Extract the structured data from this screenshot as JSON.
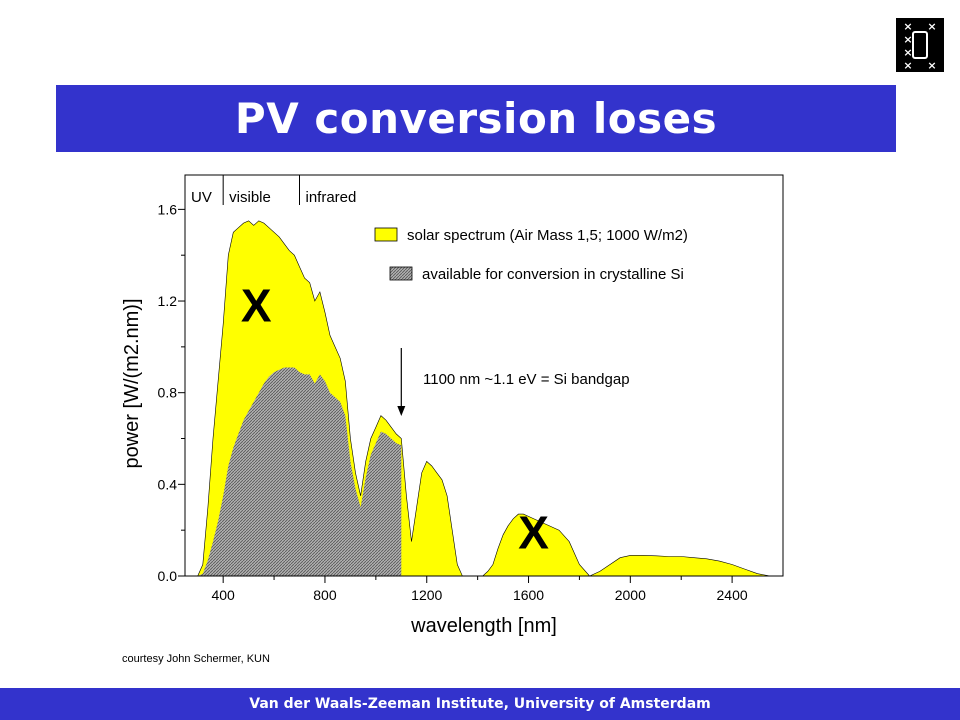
{
  "slide": {
    "title": "PV conversion loses",
    "credit": "courtesy John Schermer, KUN",
    "footer": "Van der Waals-Zeeman Institute, University of Amsterdam",
    "logo_icon": "uva-logo-icon"
  },
  "chart_data": {
    "type": "area",
    "xlabel": "wavelength [nm]",
    "ylabel": "power [W/(m2.nm)]",
    "xlim": [
      250,
      2600
    ],
    "ylim": [
      0,
      1.75
    ],
    "xticks": [
      400,
      800,
      1200,
      1600,
      2000,
      2400
    ],
    "yticks": [
      0.0,
      0.4,
      0.8,
      1.2,
      1.6
    ],
    "ytick_labels": [
      "0.0",
      "0.4",
      "0.8",
      "1.2",
      "1.6"
    ],
    "regions": [
      {
        "label": "UV",
        "from": 250,
        "to": 400
      },
      {
        "label": "visible",
        "from": 400,
        "to": 700
      },
      {
        "label": "infrared",
        "from": 700,
        "to": 2600
      }
    ],
    "colors": {
      "solar": "#ffff00",
      "available": "#b0b0b0",
      "title_bar": "#3333cc"
    },
    "series": [
      {
        "name": "solar spectrum (Air Mass 1,5; 1000 W/m2)",
        "x": [
          300,
          320,
          340,
          360,
          380,
          400,
          420,
          440,
          460,
          480,
          500,
          520,
          540,
          560,
          580,
          600,
          620,
          640,
          660,
          680,
          700,
          720,
          740,
          760,
          780,
          800,
          820,
          840,
          860,
          880,
          900,
          920,
          940,
          960,
          980,
          1000,
          1020,
          1040,
          1060,
          1080,
          1100,
          1120,
          1140,
          1160,
          1180,
          1200,
          1220,
          1240,
          1260,
          1280,
          1300,
          1320,
          1340,
          1360,
          1380,
          1400,
          1420,
          1440,
          1460,
          1480,
          1500,
          1520,
          1540,
          1560,
          1580,
          1600,
          1640,
          1680,
          1720,
          1760,
          1800,
          1840,
          1880,
          1920,
          1960,
          2000,
          2050,
          2100,
          2150,
          2200,
          2250,
          2300,
          2350,
          2400,
          2450,
          2500,
          2550
        ],
        "y": [
          0.0,
          0.05,
          0.3,
          0.6,
          0.85,
          1.1,
          1.4,
          1.5,
          1.52,
          1.54,
          1.55,
          1.53,
          1.55,
          1.54,
          1.52,
          1.5,
          1.48,
          1.45,
          1.42,
          1.4,
          1.35,
          1.3,
          1.28,
          1.2,
          1.24,
          1.15,
          1.05,
          1.0,
          0.95,
          0.85,
          0.6,
          0.45,
          0.35,
          0.5,
          0.6,
          0.65,
          0.7,
          0.68,
          0.65,
          0.62,
          0.6,
          0.35,
          0.15,
          0.3,
          0.45,
          0.5,
          0.48,
          0.45,
          0.42,
          0.35,
          0.2,
          0.05,
          0.0,
          0.0,
          0.0,
          0.0,
          0.0,
          0.02,
          0.05,
          0.12,
          0.18,
          0.22,
          0.25,
          0.27,
          0.27,
          0.26,
          0.24,
          0.22,
          0.2,
          0.15,
          0.05,
          0.0,
          0.02,
          0.05,
          0.08,
          0.09,
          0.09,
          0.088,
          0.085,
          0.085,
          0.08,
          0.075,
          0.065,
          0.05,
          0.03,
          0.01,
          0.0
        ]
      },
      {
        "name": "available for conversion in crystalline Si",
        "x": [
          300,
          320,
          340,
          360,
          380,
          400,
          420,
          440,
          460,
          480,
          500,
          520,
          540,
          560,
          580,
          600,
          620,
          640,
          660,
          680,
          700,
          720,
          740,
          760,
          780,
          800,
          820,
          840,
          860,
          880,
          900,
          920,
          940,
          960,
          980,
          1000,
          1020,
          1040,
          1060,
          1080,
          1100
        ],
        "y": [
          0.0,
          0.01,
          0.07,
          0.15,
          0.24,
          0.35,
          0.48,
          0.56,
          0.62,
          0.68,
          0.72,
          0.76,
          0.8,
          0.84,
          0.87,
          0.89,
          0.9,
          0.91,
          0.91,
          0.91,
          0.89,
          0.88,
          0.88,
          0.84,
          0.88,
          0.85,
          0.8,
          0.78,
          0.76,
          0.7,
          0.5,
          0.38,
          0.3,
          0.43,
          0.53,
          0.58,
          0.63,
          0.62,
          0.6,
          0.58,
          0.57
        ]
      }
    ],
    "annotations": [
      {
        "text": "1100 nm ~1.1 eV = Si bandgap",
        "x": 1100
      },
      {
        "text": "X",
        "x": 530,
        "y": 1.18
      },
      {
        "text": "X",
        "x": 1620,
        "y": 0.19
      }
    ]
  }
}
